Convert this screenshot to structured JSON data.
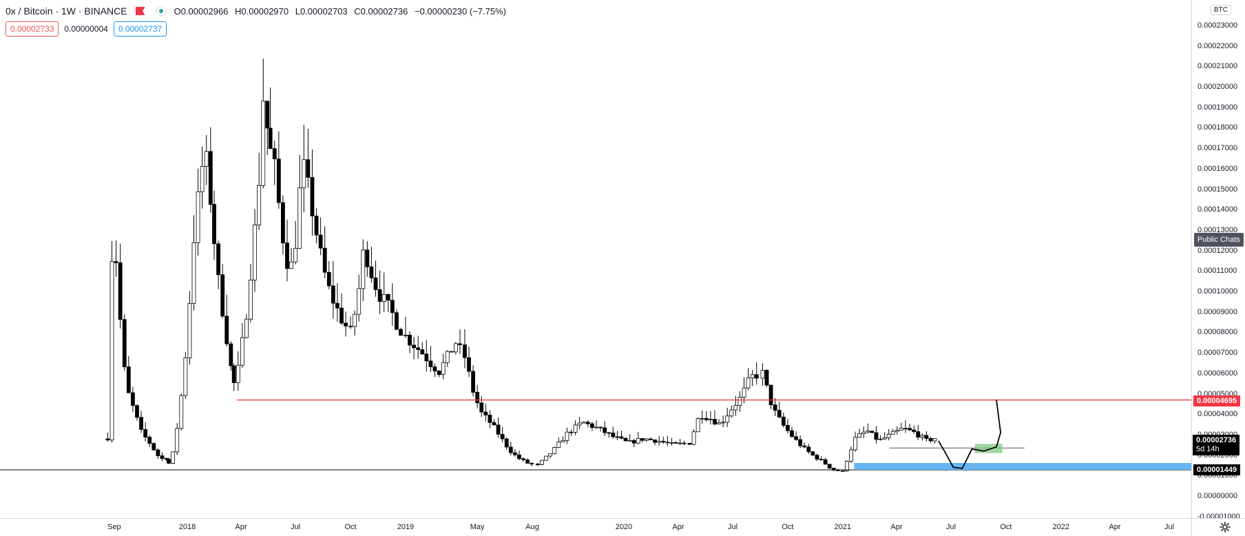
{
  "header": {
    "symbol": "0x / Bitcoin · 1W · BINANCE",
    "ohlc": [
      {
        "k": "O",
        "v": "0.00002966"
      },
      {
        "k": "H",
        "v": "0.00002970"
      },
      {
        "k": "L",
        "v": "0.00002703"
      },
      {
        "k": "C",
        "v": "0.00002736"
      }
    ],
    "change": "−0.00000230 (−7.75%)"
  },
  "quotes": {
    "bid": "0.00002733",
    "spread": "0.00000004",
    "ask": "0.00002737"
  },
  "price_axis": {
    "currency_badge": "BTC",
    "ticks": [
      "0.00023000",
      "0.00022000",
      "0.00021000",
      "0.00020000",
      "0.00019000",
      "0.00018000",
      "0.00017000",
      "0.00016000",
      "0.00015000",
      "0.00014000",
      "0.00013000",
      "0.00012000",
      "0.00011000",
      "0.00010000",
      "0.00009000",
      "0.00008000",
      "0.00007000",
      "0.00006000",
      "0.00005000",
      "0.00004000",
      "0.00003000",
      "0.00002000",
      "0.00001000",
      "0.00000000",
      "-0.00001000"
    ],
    "public_chats": "Public Chats",
    "labels": {
      "resistance": "0.00004695",
      "last": "0.00002736",
      "countdown": "5d 14h",
      "support": "0.00001449"
    }
  },
  "time_axis": {
    "labels": [
      "Sep",
      "2018",
      "Apr",
      "Jul",
      "Oct",
      "2019",
      "May",
      "Aug",
      "2020",
      "Apr",
      "Jul",
      "Oct",
      "2021",
      "Apr",
      "Jul",
      "Oct",
      "2022",
      "Apr",
      "Jul"
    ]
  },
  "colors": {
    "up_body": "#ffffff",
    "down_body": "#000000",
    "wick": "#000000",
    "resistance": "#f23645",
    "support_zone": "#64b5f6",
    "target_zone": "#81c784",
    "last_price": "#000000"
  },
  "chart_data": {
    "type": "candlestick",
    "title": "0x / Bitcoin · 1W · BINANCE",
    "ylim": [
      -1e-05,
      0.00024
    ],
    "x_range": [
      "2017-08",
      "2022-08"
    ],
    "horizontal_lines": [
      {
        "name": "resistance",
        "value": 4.695e-05
      },
      {
        "name": "support",
        "value": 1.449e-05
      }
    ],
    "segments": [
      {
        "from": "2017-08-21",
        "to": "2017-12-01",
        "points": [
          2.85e-05,
          0.000131,
          0.00011,
          7e-05,
          5.2e-05,
          4.5e-05,
          3.8e-05,
          3.1e-05,
          2.8e-05,
          2.5e-05,
          2.1e-05,
          1.8e-05,
          1.9e-05,
          1.6e-05
        ]
      },
      {
        "from": "2017-12-01",
        "to": "2018-02-15",
        "points": [
          1.6e-05,
          2.2e-05,
          4e-05,
          6e-05,
          9.2e-05,
          0.00013,
          0.00015,
          0.00017,
          0.00015,
          0.000125
        ]
      },
      {
        "from": "2018-02-15",
        "to": "2018-03-20",
        "points": [
          0.000125,
          0.0001,
          8.5e-05,
          6.5e-05,
          5.5e-05
        ]
      },
      {
        "from": "2018-03-20",
        "to": "2018-05-20",
        "points": [
          5.5e-05,
          6.2e-05,
          7.5e-05,
          9e-05,
          0.00011,
          0.00013,
          0.000155,
          0.000195,
          0.00018,
          0.000168
        ]
      },
      {
        "from": "2018-05-20",
        "to": "2018-07-01",
        "points": [
          0.000168,
          0.000158,
          0.000135,
          0.000118,
          0.00011,
          0.000125
        ]
      },
      {
        "from": "2018-07-01",
        "to": "2018-10-01",
        "points": [
          0.000125,
          0.000163,
          0.000148,
          0.00013,
          0.000112,
          0.0001,
          9.2e-05,
          8.5e-05,
          8e-05
        ]
      },
      {
        "from": "2018-10-01",
        "to": "2019-01-01",
        "points": [
          8e-05,
          9.5e-05,
          0.000122,
          0.00011,
          0.0001,
          9.5e-05,
          9e-05,
          8.3e-05,
          7.8e-05
        ]
      },
      {
        "from": "2019-01-01",
        "to": "2019-04-10",
        "points": [
          7.8e-05,
          7.4e-05,
          7e-05,
          6.5e-05,
          6.1e-05,
          6.8e-05,
          7.5e-05,
          6.8e-05
        ]
      },
      {
        "from": "2019-04-10",
        "to": "2019-08-10",
        "points": [
          6.8e-05,
          5.2e-05,
          4.1e-05,
          3.7e-05,
          3.2e-05,
          2.6e-05,
          2.1e-05,
          1.8e-05,
          1.6e-05,
          1.5e-05
        ]
      },
      {
        "from": "2019-08-10",
        "to": "2020-04-20",
        "points": [
          1.5e-05,
          2.2e-05,
          3.1e-05,
          3.6e-05,
          3.3e-05,
          2.9e-05,
          2.6e-05,
          2.8e-05,
          2.7e-05,
          2.5e-05,
          2.6e-05
        ]
      },
      {
        "from": "2020-04-20",
        "to": "2020-08-20",
        "points": [
          2.6e-05,
          4e-05,
          3.8e-05,
          3.5e-05,
          4.2e-05,
          4.8e-05,
          5.8e-05,
          6e-05
        ]
      },
      {
        "from": "2020-08-20",
        "to": "2021-01-01",
        "points": [
          6e-05,
          4.3e-05,
          3.5e-05,
          2.9e-05,
          2.4e-05,
          2e-05,
          1.7e-05,
          1.3e-05,
          1.2e-05
        ]
      },
      {
        "from": "2021-01-01",
        "to": "2021-06-10",
        "points": [
          1.2e-05,
          2.8e-05,
          3.2e-05,
          2.7e-05,
          3e-05,
          3.3e-05,
          3.1e-05,
          2.7e-05,
          2.9e-05
        ]
      }
    ]
  }
}
